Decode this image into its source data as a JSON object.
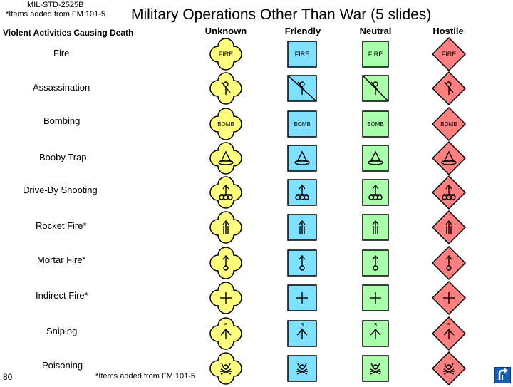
{
  "header": {
    "standard": "MIL-STD-2525B",
    "note": "*Items added from FM 101-5",
    "title": "Military Operations Other Than War (5 slides)"
  },
  "section_title": "Violent Activities Causing Death",
  "columns": [
    "Unknown",
    "Friendly",
    "Neutral",
    "Hostile"
  ],
  "frames": {
    "unknown": {
      "fill": "#ffff80",
      "stroke": "#000000"
    },
    "friendly": {
      "fill": "#80e0ff",
      "stroke": "#000000"
    },
    "neutral": {
      "fill": "#aaffaa",
      "stroke": "#000000"
    },
    "hostile": {
      "fill": "#ff8080",
      "stroke": "#000000"
    }
  },
  "rows": [
    {
      "label": "Fire",
      "icon": "fire-text",
      "text": "FIRE"
    },
    {
      "label": "Assassination",
      "icon": "assassination-icon"
    },
    {
      "label": "Bombing",
      "icon": "bomb-text",
      "text": "BOMB"
    },
    {
      "label": "Booby Trap",
      "icon": "booby-trap-icon"
    },
    {
      "label": "Drive-By Shooting",
      "icon": "drive-by-shooting-icon"
    },
    {
      "label": "Rocket Fire*",
      "icon": "rocket-fire-icon"
    },
    {
      "label": "Mortar Fire*",
      "icon": "mortar-fire-icon"
    },
    {
      "label": "Indirect Fire*",
      "icon": "indirect-fire-icon"
    },
    {
      "label": "Sniping",
      "icon": "sniping-icon",
      "text": "S"
    },
    {
      "label": "Poisoning",
      "icon": "poisoning-icon"
    }
  ],
  "footer": {
    "page_number": "80",
    "footnote": "*Items added from FM 101-5"
  },
  "return_icon": "return-arrow-icon"
}
